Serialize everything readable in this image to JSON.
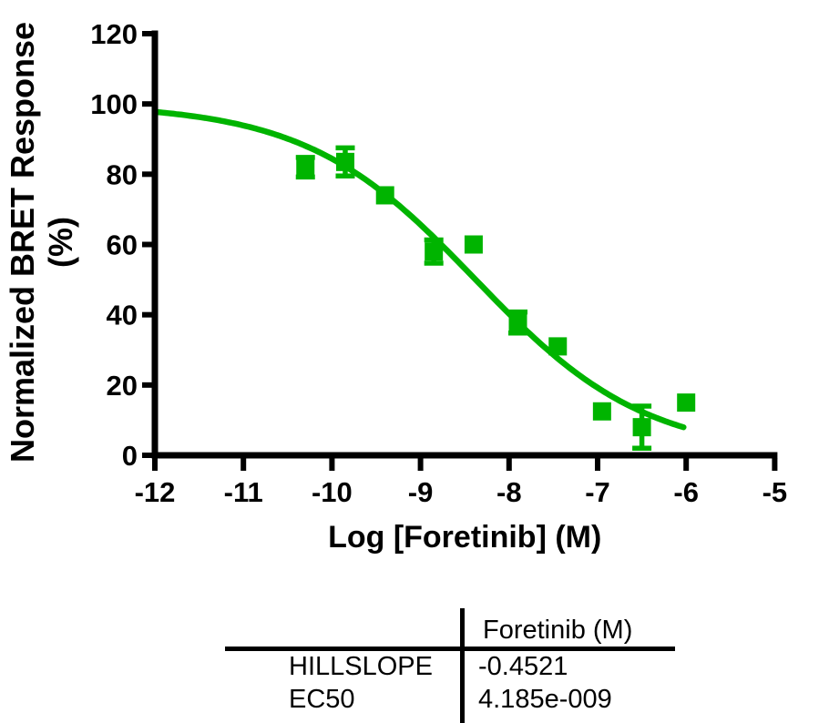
{
  "chart_data": {
    "type": "scatter",
    "title": "",
    "xlabel": "Log [Foretinib] (M)",
    "ylabel_lines": [
      "Normalized BRET Response",
      "(%)"
    ],
    "xlim": [
      -12,
      -5
    ],
    "ylim": [
      0,
      120
    ],
    "x_ticks": [
      -12,
      -11,
      -10,
      -9,
      -8,
      -7,
      -6,
      -5
    ],
    "y_ticks": [
      0,
      20,
      40,
      60,
      80,
      100,
      120
    ],
    "grid": false,
    "legend": "none",
    "series_name": "Foretinib",
    "series_color": "#00b400",
    "marker": "square",
    "points": [
      {
        "x": -10.3,
        "y": 82,
        "err": 2.8
      },
      {
        "x": -9.85,
        "y": 83.5,
        "err": 4
      },
      {
        "x": -9.4,
        "y": 74,
        "err": null
      },
      {
        "x": -8.85,
        "y": 58,
        "err": 3.3
      },
      {
        "x": -8.4,
        "y": 60,
        "err": null
      },
      {
        "x": -7.9,
        "y": 37.8,
        "err": 3
      },
      {
        "x": -7.45,
        "y": 31,
        "err": null
      },
      {
        "x": -6.95,
        "y": 12.5,
        "err": null
      },
      {
        "x": -6.5,
        "y": 8,
        "err": 6
      },
      {
        "x": -6.0,
        "y": 15,
        "err": null
      }
    ],
    "fit_curve": {
      "model": "log(inhibitor) vs response",
      "top": 100,
      "bottom": 0,
      "hillslope": -0.4521,
      "ec50": 4.185e-09,
      "x_start": -12,
      "x_end": -6.03
    }
  },
  "table": {
    "column_header": "Foretinib (M)",
    "rows": [
      {
        "label": "HILLSLOPE",
        "value": "-0.4521"
      },
      {
        "label": "EC50",
        "value": "4.185e-009"
      }
    ]
  }
}
